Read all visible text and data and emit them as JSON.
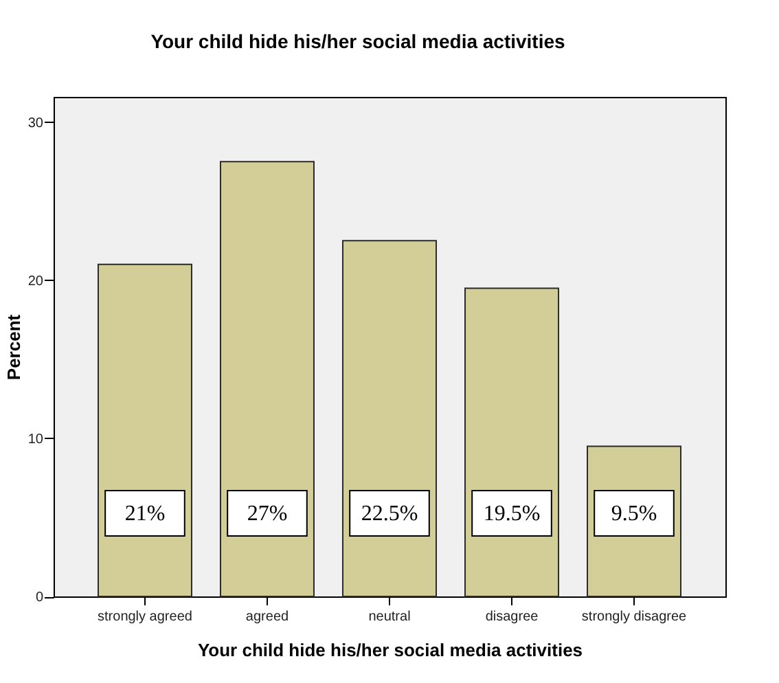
{
  "chart_data": {
    "type": "bar",
    "title": "Your child hide his/her social media activities",
    "xlabel": "Your child hide his/her social media activities",
    "ylabel": "Percent",
    "categories": [
      "strongly agreed",
      "agreed",
      "neutral",
      "disagree",
      "strongly disagree"
    ],
    "values": [
      21,
      27.5,
      22.5,
      19.5,
      9.5
    ],
    "value_labels": [
      "21%",
      "27%",
      "22.5%",
      "19.5%",
      "9.5%"
    ],
    "color": "#d3ce98",
    "ylim": [
      0,
      31.6
    ],
    "yticks": [
      0,
      10,
      20,
      30
    ]
  }
}
